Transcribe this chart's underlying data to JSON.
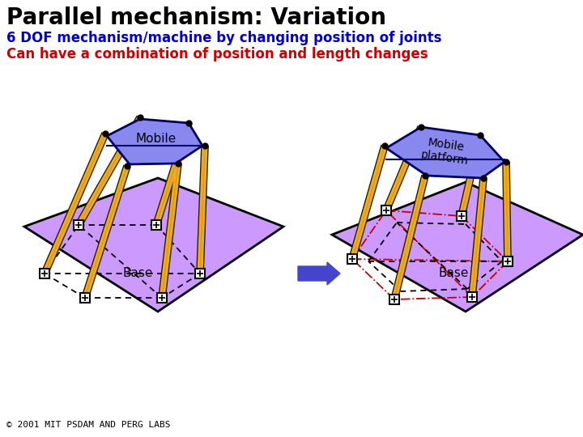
{
  "title": "Parallel mechanism: Variation",
  "subtitle": "6 DOF mechanism/machine by changing position of joints",
  "subtitle2": "Can have a combination of position and length changes",
  "footer": "© 2001 MIT PSDAM AND PERG LABS",
  "title_color": "#000000",
  "subtitle_color": "#0000cc",
  "subtitle2_color": "#cc0000",
  "footer_color": "#000000",
  "bg_color": "#ffffff",
  "base_plane_fill": "#cc99ff",
  "mobile_fill": "#8888ee",
  "mobile_fill2": "#aaaaff",
  "leg_color": "#ffaa00",
  "leg_outline": "#222200",
  "joint_color": "#ffffff",
  "outline_color": "#000000",
  "dark_navy": "#000066",
  "dashed_color": "#000000",
  "arrow_color": "#4444cc",
  "red_dashed_color": "#cc0000",
  "gray_line": "#888888"
}
